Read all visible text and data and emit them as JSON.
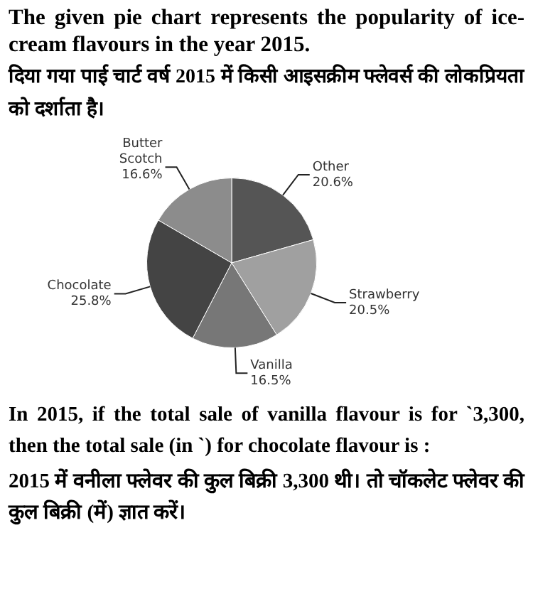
{
  "chart_data": {
    "type": "pie",
    "title": "The given pie chart represents the popularity of ice-cream flavours in the year 2015.",
    "subtitle": "दिया गया पाई चार्ट वर्ष 2015 में किसी आइसक्रीम फ्लेवर्स की लोकप्रियता को दर्शाता है।",
    "categories": [
      "Other",
      "Strawberry",
      "Vanilla",
      "Chocolate",
      "Butter Scotch"
    ],
    "values": [
      20.6,
      20.5,
      16.5,
      25.8,
      16.6
    ],
    "value_labels": [
      "20.6%",
      "20.5%",
      "16.5%",
      "25.8%",
      "16.6%"
    ],
    "colors": [
      "#555555",
      "#a0a0a0",
      "#777777",
      "#444444",
      "#8c8c8c"
    ],
    "legend": false,
    "annotations": [
      "In 2015, if the total sale of vanilla flavour is for `3,300, then the total sale (in `) for chocolate flavour is :",
      "2015 में वनीला फ्लेवर की कुल बिक्री 3,300 थी। तो चॉकलेट फ्लेवर की कुल बिक्री (में) ज्ञात करें।"
    ]
  }
}
